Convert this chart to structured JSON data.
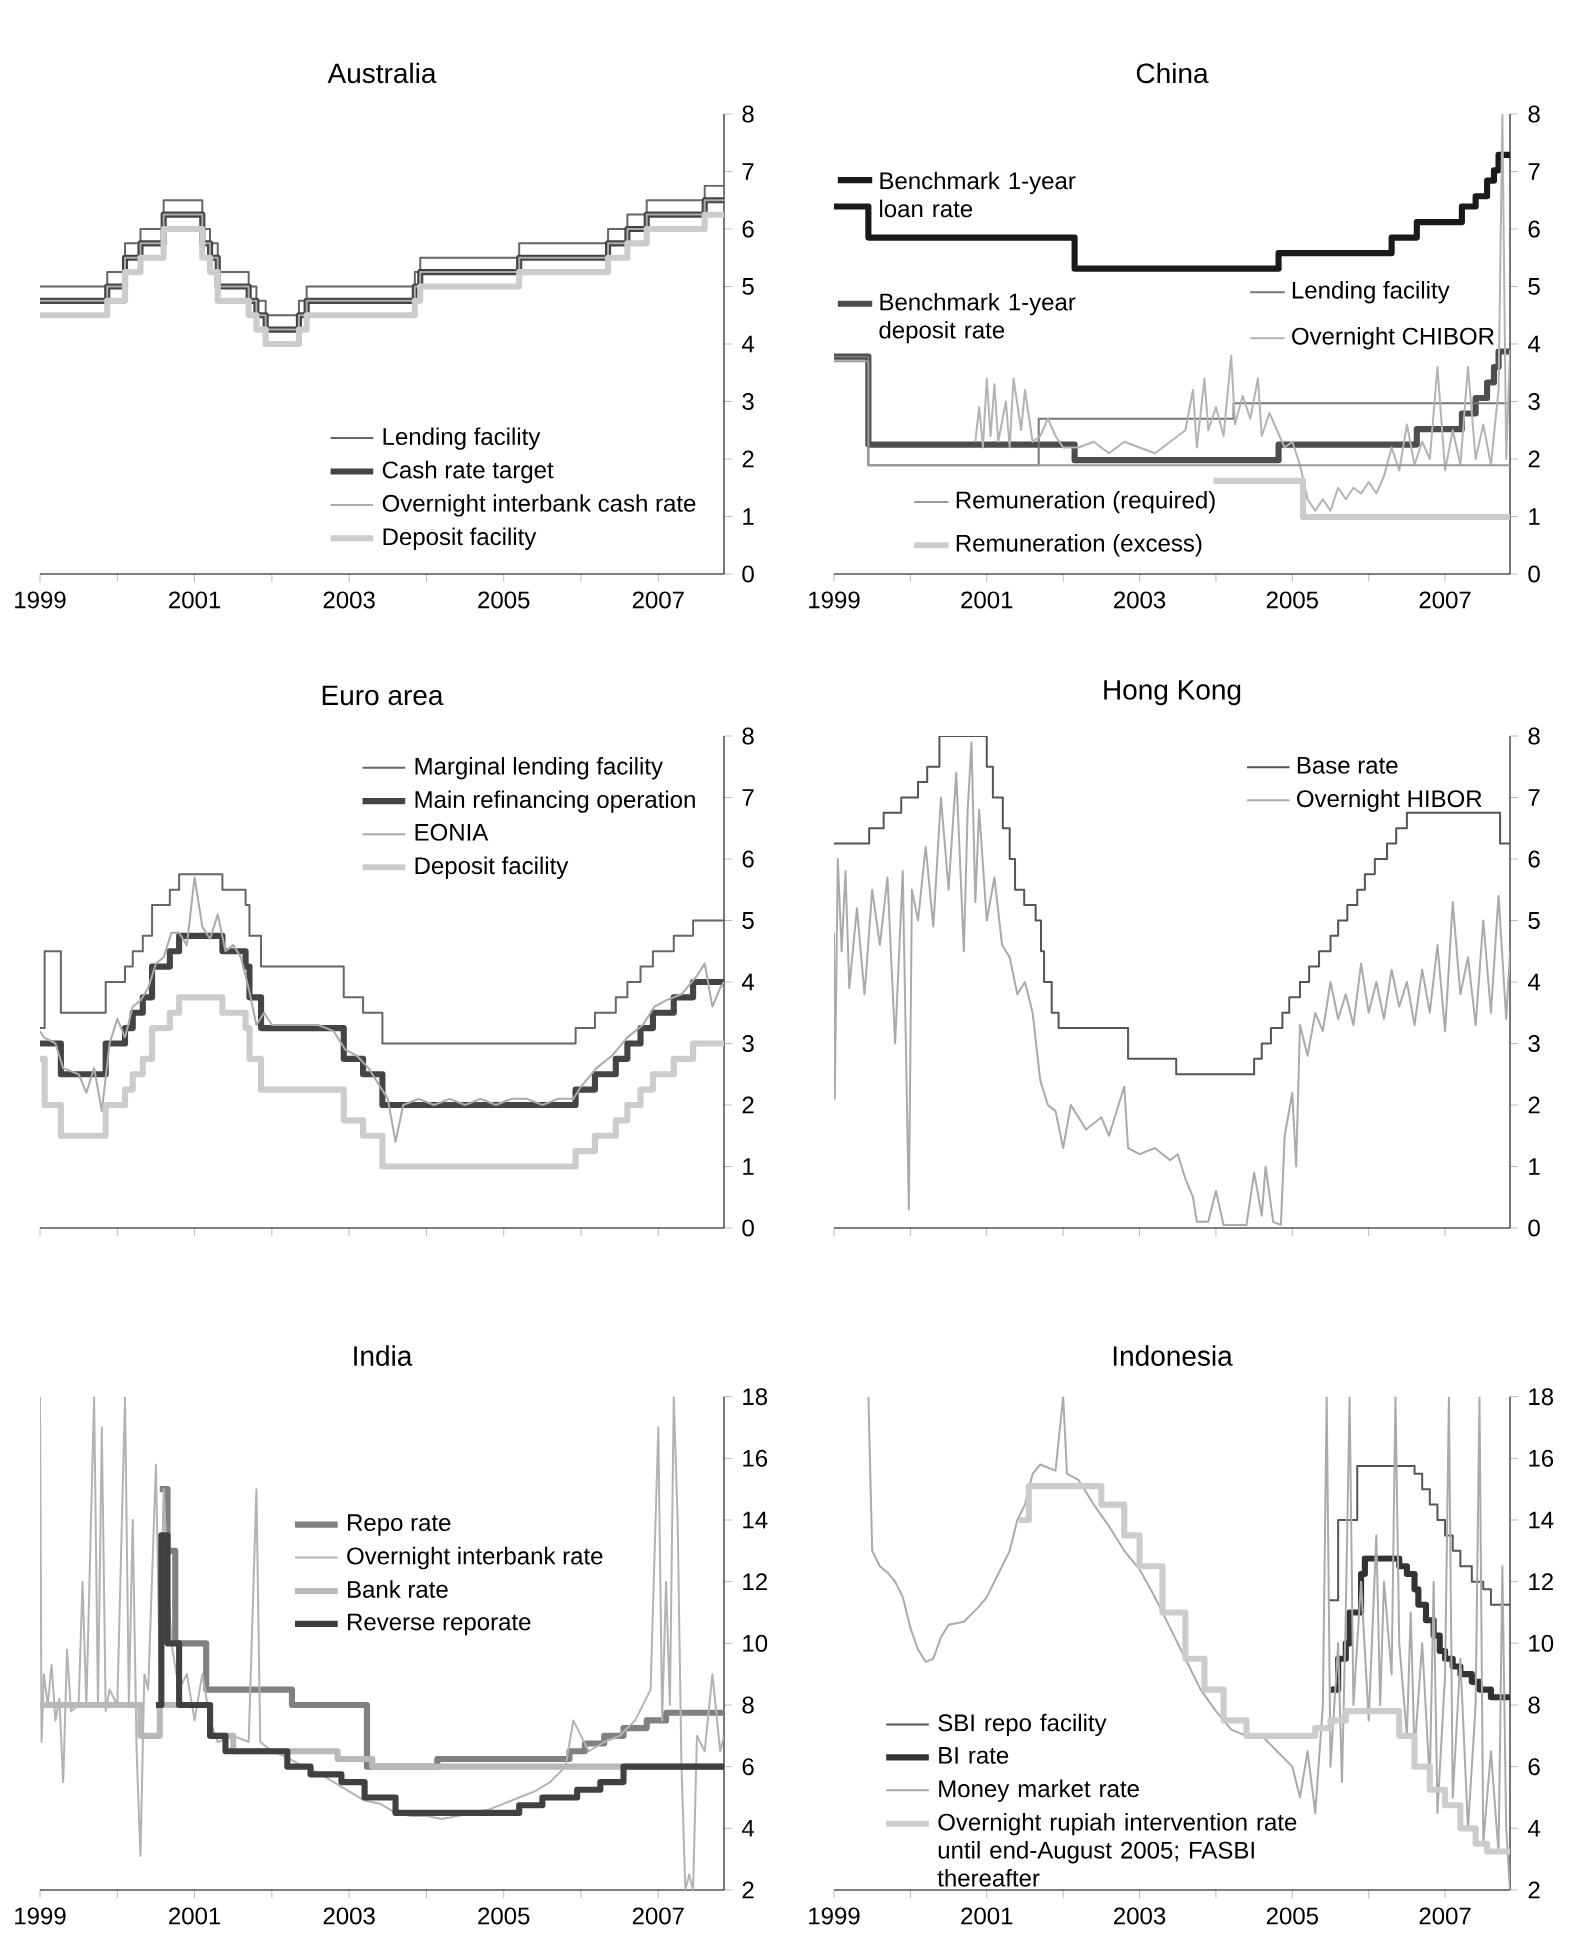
{
  "chart_data": [
    {
      "type": "line",
      "title": "Australia",
      "xlim": [
        1999,
        2007.85
      ],
      "ylim": [
        0,
        8
      ],
      "xticks": [
        1999,
        {
          "value": 2000,
          "label": null
        },
        2001,
        {
          "value": 2002,
          "label": null
        },
        2003,
        {
          "value": 2004,
          "label": null
        },
        2005,
        {
          "value": 2006,
          "label": null
        },
        2007
      ],
      "yticks": [
        0,
        1,
        2,
        3,
        4,
        5,
        6,
        7,
        8
      ],
      "legend": "bottom right",
      "x": [
        1999.0,
        1999.87,
        2000.1,
        2000.3,
        2000.6,
        2001.1,
        2001.2,
        2001.3,
        2001.7,
        2001.8,
        2001.92,
        2002.35,
        2002.45,
        2003.85,
        2003.92,
        2005.2,
        2006.35,
        2006.6,
        2006.85,
        2007.6,
        2007.85
      ],
      "series": [
        {
          "name": "Lending facility",
          "type": "step",
          "color": "#666666",
          "values": [
            5.0,
            5.25,
            5.75,
            6.0,
            6.5,
            6.0,
            5.75,
            5.25,
            5.0,
            4.75,
            4.5,
            4.75,
            5.0,
            5.25,
            5.5,
            5.75,
            6.0,
            6.25,
            6.5,
            6.75,
            6.75
          ]
        },
        {
          "name": "Cash rate target",
          "type": "step",
          "color": "#444444",
          "values": [
            4.75,
            5.0,
            5.5,
            5.75,
            6.25,
            5.75,
            5.5,
            5.0,
            4.75,
            4.5,
            4.25,
            4.5,
            4.75,
            5.0,
            5.25,
            5.5,
            5.75,
            6.0,
            6.25,
            6.5,
            6.5
          ]
        },
        {
          "name": "Overnight interbank cash rate",
          "type": "step",
          "color": "#aaaaaa",
          "values": [
            4.75,
            5.0,
            5.5,
            5.75,
            6.25,
            5.75,
            5.5,
            5.0,
            4.75,
            4.5,
            4.25,
            4.5,
            4.75,
            5.0,
            5.25,
            5.5,
            5.75,
            6.0,
            6.25,
            6.5,
            6.5
          ]
        },
        {
          "name": "Deposit facility",
          "type": "step",
          "color": "#cccccc",
          "values": [
            4.5,
            4.75,
            5.25,
            5.5,
            6.0,
            5.5,
            5.25,
            4.75,
            4.5,
            4.25,
            4.0,
            4.25,
            4.5,
            4.75,
            5.0,
            5.25,
            5.5,
            5.75,
            6.0,
            6.25,
            6.25
          ]
        }
      ]
    },
    {
      "type": "line",
      "title": "China",
      "xlim": [
        1999,
        2007.85
      ],
      "ylim": [
        0,
        8
      ],
      "xticks": [
        1999,
        {
          "value": 2000,
          "label": null
        },
        2001,
        {
          "value": 2002,
          "label": null
        },
        2003,
        {
          "value": 2004,
          "label": null
        },
        2005,
        {
          "value": 2006,
          "label": null
        },
        2007
      ],
      "yticks": [
        0,
        1,
        2,
        3,
        4,
        5,
        6,
        7,
        8
      ],
      "legend": "left",
      "series": [
        {
          "name": "Benchmark 1-year loan rate",
          "type": "step",
          "color": "#1a1a1a",
          "x": [
            1999.0,
            1999.45,
            2002.15,
            2004.82,
            2006.3,
            2006.63,
            2007.22,
            2007.4,
            2007.55,
            2007.64,
            2007.7,
            2007.85
          ],
          "values": [
            6.39,
            5.85,
            5.31,
            5.58,
            5.85,
            6.12,
            6.39,
            6.57,
            6.84,
            7.02,
            7.29,
            7.29
          ]
        },
        {
          "name": "Benchmark 1-year deposit rate",
          "type": "step",
          "color": "#4d4d4d",
          "x": [
            1999.0,
            1999.45,
            2002.15,
            2004.82,
            2006.63,
            2007.22,
            2007.4,
            2007.55,
            2007.64,
            2007.7,
            2007.85
          ],
          "values": [
            3.78,
            2.25,
            1.98,
            2.25,
            2.52,
            2.79,
            3.06,
            3.33,
            3.6,
            3.87,
            3.87
          ]
        },
        {
          "name": "Lending facility",
          "type": "step",
          "color": "#777777",
          "x": [
            1999.0,
            1999.45,
            2001.68,
            2004.23,
            2007.85
          ],
          "values": [
            3.78,
            1.89,
            2.7,
            2.97,
            2.97
          ]
        },
        {
          "name": "Overnight CHIBOR",
          "color": "#b3b3b3",
          "x": [
            2000.85,
            2000.9,
            2000.95,
            2001.0,
            2001.05,
            2001.1,
            2001.15,
            2001.25,
            2001.3,
            2001.35,
            2001.45,
            2001.5,
            2001.6,
            2001.7,
            2001.8,
            2001.9,
            2002.0,
            2002.2,
            2002.4,
            2002.6,
            2002.8,
            2003.0,
            2003.2,
            2003.4,
            2003.6,
            2003.7,
            2003.75,
            2003.85,
            2003.9,
            2004.0,
            2004.1,
            2004.2,
            2004.25,
            2004.35,
            2004.45,
            2004.55,
            2004.6,
            2004.7,
            2004.8,
            2004.9,
            2005.0,
            2005.1,
            2005.2,
            2005.3,
            2005.4,
            2005.5,
            2005.6,
            2005.7,
            2005.8,
            2005.9,
            2006.0,
            2006.1,
            2006.2,
            2006.3,
            2006.4,
            2006.5,
            2006.6,
            2006.7,
            2006.8,
            2006.9,
            2007.0,
            2007.1,
            2007.2,
            2007.3,
            2007.4,
            2007.5,
            2007.6,
            2007.7,
            2007.75,
            2007.8,
            2007.85
          ],
          "values": [
            2.3,
            2.9,
            2.2,
            3.4,
            2.4,
            3.3,
            2.3,
            3.0,
            2.2,
            3.4,
            2.5,
            3.2,
            2.3,
            2.4,
            2.7,
            2.4,
            2.2,
            2.2,
            2.3,
            2.1,
            2.3,
            2.2,
            2.1,
            2.3,
            2.5,
            3.2,
            2.2,
            3.4,
            2.5,
            2.9,
            2.4,
            3.8,
            2.6,
            3.1,
            2.7,
            3.4,
            2.4,
            2.8,
            2.5,
            2.2,
            2.3,
            1.9,
            1.3,
            1.1,
            1.3,
            1.1,
            1.5,
            1.3,
            1.5,
            1.4,
            1.6,
            1.4,
            1.7,
            2.2,
            1.8,
            2.6,
            1.9,
            2.3,
            2.0,
            3.6,
            1.8,
            2.5,
            1.9,
            3.6,
            2.0,
            2.6,
            1.9,
            3.2,
            8.0,
            2.0,
            3.9
          ]
        },
        {
          "name": "Remuneration (required)",
          "type": "step",
          "color": "#999999",
          "x": [
            1999.0,
            1999.45,
            2007.85
          ],
          "values": [
            3.7,
            1.89,
            1.89
          ]
        },
        {
          "name": "Remuneration (excess)",
          "type": "step",
          "color": "#cccccc",
          "x": [
            2003.97,
            2005.14,
            2007.85
          ],
          "values": [
            1.62,
            0.99,
            0.99
          ]
        }
      ]
    },
    {
      "type": "line",
      "title": "Euro area",
      "xlim": [
        1999,
        2007.85
      ],
      "ylim": [
        0,
        8
      ],
      "tick_labels": "y",
      "xticks": [
        1999,
        {
          "value": 2000,
          "label": null
        },
        2001,
        {
          "value": 2002,
          "label": null
        },
        2003,
        {
          "value": 2004,
          "label": null
        },
        2005,
        {
          "value": 2006,
          "label": null
        },
        2007
      ],
      "yticks": [
        0,
        1,
        2,
        3,
        4,
        5,
        6,
        7,
        8
      ],
      "legend": "top right",
      "series": [
        {
          "name": "Marginal lending facility",
          "type": "step",
          "color": "#666666",
          "x": [
            1999.0,
            1999.06,
            1999.27,
            1999.85,
            2000.1,
            2000.2,
            2000.33,
            2000.45,
            2000.68,
            2000.8,
            2001.36,
            2001.66,
            2001.71,
            2001.86,
            2002.93,
            2003.18,
            2003.43,
            2005.93,
            2006.18,
            2006.45,
            2006.6,
            2006.77,
            2006.93,
            2007.2,
            2007.45,
            2007.85
          ],
          "values": [
            3.25,
            4.5,
            3.5,
            4.0,
            4.25,
            4.5,
            4.75,
            5.25,
            5.5,
            5.75,
            5.5,
            5.25,
            4.75,
            4.25,
            3.75,
            3.5,
            3.0,
            3.25,
            3.5,
            3.75,
            4.0,
            4.25,
            4.5,
            4.75,
            5.0,
            5.0
          ]
        },
        {
          "name": "Main refinancing operation",
          "type": "step",
          "color": "#444444",
          "x": [
            1999.0,
            1999.27,
            1999.85,
            2000.1,
            2000.2,
            2000.33,
            2000.45,
            2000.68,
            2000.8,
            2001.36,
            2001.66,
            2001.71,
            2001.86,
            2002.93,
            2003.18,
            2003.43,
            2005.93,
            2006.18,
            2006.45,
            2006.6,
            2006.77,
            2006.93,
            2007.2,
            2007.45,
            2007.85
          ],
          "values": [
            3.0,
            2.5,
            3.0,
            3.25,
            3.5,
            3.75,
            4.25,
            4.5,
            4.75,
            4.5,
            4.25,
            3.75,
            3.25,
            2.75,
            2.5,
            2.0,
            2.25,
            2.5,
            2.75,
            3.0,
            3.25,
            3.5,
            3.75,
            4.0,
            4.0
          ]
        },
        {
          "name": "EONIA",
          "color": "#aaaaaa",
          "x": [
            1999.0,
            1999.05,
            1999.2,
            1999.3,
            1999.5,
            1999.6,
            1999.7,
            1999.8,
            1999.9,
            2000.0,
            2000.1,
            2000.2,
            2000.3,
            2000.4,
            2000.5,
            2000.6,
            2000.7,
            2000.8,
            2000.9,
            2001.0,
            2001.1,
            2001.2,
            2001.3,
            2001.4,
            2001.5,
            2001.6,
            2001.7,
            2001.8,
            2001.9,
            2002.0,
            2002.2,
            2002.4,
            2002.6,
            2002.8,
            2002.95,
            2003.1,
            2003.25,
            2003.4,
            2003.5,
            2003.6,
            2003.7,
            2003.9,
            2004.1,
            2004.3,
            2004.5,
            2004.7,
            2004.9,
            2005.1,
            2005.3,
            2005.5,
            2005.7,
            2005.9,
            2006.0,
            2006.2,
            2006.4,
            2006.6,
            2006.8,
            2006.95,
            2007.1,
            2007.3,
            2007.5,
            2007.6,
            2007.7,
            2007.8,
            2007.85
          ],
          "values": [
            3.2,
            3.1,
            3.0,
            2.6,
            2.5,
            2.2,
            2.6,
            1.9,
            3.0,
            3.4,
            3.1,
            3.6,
            3.7,
            3.9,
            4.3,
            4.4,
            4.8,
            4.8,
            4.6,
            5.7,
            4.9,
            4.7,
            5.1,
            4.5,
            4.6,
            4.4,
            3.9,
            3.3,
            3.5,
            3.3,
            3.3,
            3.3,
            3.3,
            3.2,
            2.9,
            2.8,
            2.6,
            2.3,
            2.1,
            1.4,
            2.0,
            2.1,
            2.0,
            2.1,
            2.0,
            2.1,
            2.0,
            2.1,
            2.1,
            2.0,
            2.1,
            2.1,
            2.3,
            2.6,
            2.8,
            3.1,
            3.3,
            3.6,
            3.7,
            3.8,
            4.1,
            4.3,
            3.6,
            3.9,
            4.0
          ]
        },
        {
          "name": "Deposit facility",
          "type": "step",
          "color": "#cccccc",
          "x": [
            1999.0,
            1999.06,
            1999.27,
            1999.85,
            2000.1,
            2000.2,
            2000.33,
            2000.45,
            2000.68,
            2000.8,
            2001.36,
            2001.66,
            2001.71,
            2001.86,
            2002.93,
            2003.18,
            2003.43,
            2005.93,
            2006.18,
            2006.45,
            2006.6,
            2006.77,
            2006.93,
            2007.2,
            2007.45,
            2007.85
          ],
          "values": [
            2.75,
            2.0,
            1.5,
            2.0,
            2.25,
            2.5,
            2.75,
            3.25,
            3.5,
            3.75,
            3.5,
            3.25,
            2.75,
            2.25,
            1.75,
            1.5,
            1.0,
            1.25,
            1.5,
            1.75,
            2.0,
            2.25,
            2.5,
            2.75,
            3.0,
            3.0
          ]
        }
      ]
    },
    {
      "type": "line",
      "title": "Hong Kong",
      "xlim": [
        1999,
        2007.85
      ],
      "ylim": [
        0,
        8
      ],
      "tick_labels": "y",
      "xticks": [
        1999,
        {
          "value": 2000,
          "label": null
        },
        2001,
        {
          "value": 2002,
          "label": null
        },
        2003,
        {
          "value": 2004,
          "label": null
        },
        2005,
        {
          "value": 2006,
          "label": null
        },
        2007
      ],
      "yticks": [
        0,
        1,
        2,
        3,
        4,
        5,
        6,
        7,
        8
      ],
      "legend": "top right",
      "series": [
        {
          "name": "Base rate",
          "type": "step",
          "color": "#555555",
          "x": [
            1999.0,
            1999.46,
            1999.65,
            1999.88,
            2000.1,
            2000.22,
            2000.38,
            2001.0,
            2001.08,
            2001.21,
            2001.3,
            2001.37,
            2001.49,
            2001.64,
            2001.71,
            2001.75,
            2001.85,
            2001.94,
            2002.85,
            2003.48,
            2004.5,
            2004.6,
            2004.72,
            2004.87,
            2004.96,
            2005.1,
            2005.22,
            2005.35,
            2005.5,
            2005.6,
            2005.72,
            2005.85,
            2005.95,
            2006.08,
            2006.24,
            2006.36,
            2006.5,
            2007.72,
            2007.85
          ],
          "values": [
            6.25,
            6.5,
            6.75,
            7.0,
            7.25,
            7.5,
            8.0,
            7.5,
            7.0,
            6.5,
            6.0,
            5.5,
            5.25,
            5.0,
            4.5,
            4.0,
            3.5,
            3.25,
            2.75,
            2.5,
            2.75,
            3.0,
            3.25,
            3.5,
            3.75,
            4.0,
            4.25,
            4.5,
            4.75,
            5.0,
            5.25,
            5.5,
            5.75,
            6.0,
            6.25,
            6.5,
            6.75,
            6.25,
            6.25
          ]
        },
        {
          "name": "Overnight HIBOR",
          "color": "#aaaaaa",
          "x": [
            1999.0,
            1999.01,
            1999.05,
            1999.1,
            1999.15,
            1999.2,
            1999.3,
            1999.4,
            1999.5,
            1999.6,
            1999.7,
            1999.8,
            1999.9,
            1999.98,
            2000.02,
            2000.1,
            2000.2,
            2000.3,
            2000.4,
            2000.5,
            2000.6,
            2000.7,
            2000.75,
            2000.8,
            2000.85,
            2000.9,
            2001.0,
            2001.1,
            2001.2,
            2001.3,
            2001.4,
            2001.5,
            2001.6,
            2001.7,
            2001.8,
            2001.9,
            2002.0,
            2002.1,
            2002.3,
            2002.5,
            2002.6,
            2002.8,
            2002.85,
            2003.0,
            2003.2,
            2003.4,
            2003.5,
            2003.6,
            2003.7,
            2003.75,
            2003.9,
            2004.0,
            2004.1,
            2004.4,
            2004.5,
            2004.6,
            2004.65,
            2004.75,
            2004.85,
            2004.9,
            2005.0,
            2005.05,
            2005.1,
            2005.2,
            2005.3,
            2005.4,
            2005.5,
            2005.6,
            2005.7,
            2005.8,
            2005.9,
            2006.0,
            2006.1,
            2006.2,
            2006.3,
            2006.4,
            2006.5,
            2006.6,
            2006.7,
            2006.8,
            2006.9,
            2007.0,
            2007.1,
            2007.2,
            2007.3,
            2007.4,
            2007.5,
            2007.6,
            2007.7,
            2007.8,
            2007.85
          ],
          "values": [
            4.8,
            2.1,
            6.0,
            4.5,
            5.8,
            3.9,
            5.2,
            3.8,
            5.5,
            4.6,
            5.7,
            3.0,
            5.8,
            0.3,
            5.5,
            5.0,
            6.2,
            4.9,
            7.0,
            5.5,
            7.4,
            4.5,
            6.8,
            7.9,
            5.3,
            6.8,
            5.0,
            5.7,
            4.6,
            4.4,
            3.8,
            4.0,
            3.5,
            2.4,
            2.0,
            1.9,
            1.3,
            2.0,
            1.6,
            1.8,
            1.5,
            2.3,
            1.3,
            1.2,
            1.3,
            1.1,
            1.2,
            0.8,
            0.5,
            0.1,
            0.1,
            0.6,
            0.05,
            0.05,
            0.9,
            0.2,
            1.0,
            0.1,
            0.05,
            1.5,
            2.2,
            1.0,
            3.3,
            2.8,
            3.5,
            3.2,
            4.0,
            3.4,
            3.8,
            3.3,
            4.3,
            3.5,
            4.0,
            3.4,
            4.2,
            3.6,
            4.0,
            3.3,
            4.2,
            3.5,
            4.6,
            3.2,
            5.3,
            3.8,
            4.4,
            3.3,
            5.0,
            3.5,
            5.4,
            3.4,
            4.5
          ]
        }
      ]
    },
    {
      "type": "line",
      "title": "India",
      "xlim": [
        1999,
        2007.85
      ],
      "ylim": [
        2,
        18
      ],
      "xticks": [
        1999,
        {
          "value": 2000,
          "label": null
        },
        2001,
        {
          "value": 2002,
          "label": null
        },
        2003,
        {
          "value": 2004,
          "label": null
        },
        2005,
        {
          "value": 2006,
          "label": null
        },
        2007
      ],
      "yticks": [
        2,
        4,
        6,
        8,
        10,
        12,
        14,
        16,
        18
      ],
      "legend": "center",
      "series": [
        {
          "name": "Repo rate",
          "type": "step",
          "color": "#808080",
          "x": [
            2000.55,
            2000.65,
            2000.75,
            2001.15,
            2002.26,
            2003.23,
            2004.14,
            2005.85,
            2006.05,
            2006.3,
            2006.55,
            2006.85,
            2007.1,
            2007.85
          ],
          "values": [
            15,
            13,
            10,
            8.5,
            8.0,
            6.0,
            6.25,
            6.5,
            6.75,
            7.0,
            7.25,
            7.5,
            7.75,
            7.75
          ]
        },
        {
          "name": "Overnight interbank rate",
          "color": "#b3b3b3",
          "x": [
            1999.0,
            1999.02,
            1999.05,
            1999.1,
            1999.15,
            1999.2,
            1999.25,
            1999.3,
            1999.35,
            1999.4,
            1999.5,
            1999.55,
            1999.6,
            1999.7,
            1999.75,
            1999.8,
            1999.85,
            1999.9,
            2000.0,
            2000.1,
            2000.15,
            2000.2,
            2000.25,
            2000.3,
            2000.35,
            2000.4,
            2000.5,
            2000.55,
            2000.6,
            2000.7,
            2000.8,
            2000.9,
            2001.0,
            2001.1,
            2001.2,
            2001.3,
            2001.5,
            2001.7,
            2001.8,
            2001.85,
            2002.0,
            2002.2,
            2002.4,
            2002.6,
            2002.8,
            2003.0,
            2003.2,
            2003.4,
            2003.6,
            2003.8,
            2004.0,
            2004.2,
            2004.4,
            2004.6,
            2004.8,
            2005.0,
            2005.2,
            2005.4,
            2005.6,
            2005.8,
            2005.9,
            2006.0,
            2006.1,
            2006.3,
            2006.5,
            2006.7,
            2006.9,
            2007.0,
            2007.05,
            2007.1,
            2007.15,
            2007.2,
            2007.25,
            2007.3,
            2007.35,
            2007.4,
            2007.45,
            2007.5,
            2007.6,
            2007.7,
            2007.8,
            2007.85
          ],
          "values": [
            18,
            6.8,
            9.0,
            8.0,
            9.3,
            7.5,
            8.2,
            5.5,
            9.8,
            7.8,
            8.0,
            12.0,
            8.0,
            18,
            8.0,
            17.0,
            7.8,
            8.5,
            8.0,
            18,
            8.0,
            14,
            6.5,
            3.1,
            9.0,
            8.5,
            15.8,
            9.0,
            15.0,
            10.0,
            8.5,
            9.0,
            7.5,
            9.0,
            7.5,
            6.8,
            7.0,
            6.8,
            15.0,
            6.8,
            6.5,
            6.3,
            6.0,
            5.8,
            5.5,
            5.2,
            4.9,
            4.8,
            4.5,
            4.4,
            4.4,
            4.3,
            4.4,
            4.5,
            4.6,
            4.8,
            5.0,
            5.2,
            5.5,
            6.0,
            7.5,
            7.0,
            6.5,
            6.8,
            7.0,
            7.5,
            8.5,
            17.0,
            7.5,
            12.0,
            8.0,
            18.0,
            14.0,
            6.0,
            2.0,
            2.5,
            2.0,
            7.0,
            6.5,
            9.0,
            6.5,
            7.0
          ]
        },
        {
          "name": "Bank rate",
          "type": "step",
          "color": "#b8b8b8",
          "x": [
            1999.0,
            2000.3,
            2000.55,
            2001.2,
            2001.5,
            2002.85,
            2003.3,
            2007.85
          ],
          "values": [
            8,
            7,
            8,
            7,
            6.5,
            6.25,
            6.0,
            6.0
          ]
        },
        {
          "name": "Reverse reporate",
          "type": "step",
          "color": "#404040",
          "x": [
            2000.5,
            2000.57,
            2000.65,
            2000.8,
            2001.2,
            2001.4,
            2002.2,
            2002.5,
            2002.9,
            2003.2,
            2003.6,
            2005.2,
            2005.5,
            2005.95,
            2006.25,
            2006.55,
            2007.85
          ],
          "values": [
            8,
            13.5,
            10,
            8,
            7,
            6.5,
            6.0,
            5.75,
            5.5,
            5.0,
            4.5,
            4.75,
            5.0,
            5.25,
            5.5,
            6.0,
            6.0
          ]
        }
      ]
    },
    {
      "type": "line",
      "title": "Indonesia",
      "xlim": [
        1999,
        2007.85
      ],
      "ylim": [
        2,
        18
      ],
      "xticks": [
        1999,
        {
          "value": 2000,
          "label": null
        },
        2001,
        {
          "value": 2002,
          "label": null
        },
        2003,
        {
          "value": 2004,
          "label": null
        },
        2005,
        {
          "value": 2006,
          "label": null
        },
        2007
      ],
      "yticks": [
        2,
        4,
        6,
        8,
        10,
        12,
        14,
        16,
        18
      ],
      "legend": "bottom left",
      "series": [
        {
          "name": "SBI repo facility",
          "type": "step",
          "color": "#555555",
          "x": [
            2005.47,
            2005.6,
            2005.85,
            2006.6,
            2006.7,
            2006.8,
            2006.9,
            2007.0,
            2007.1,
            2007.2,
            2007.35,
            2007.5,
            2007.6,
            2007.85
          ],
          "values": [
            11.4,
            14.0,
            15.75,
            15.5,
            15.0,
            14.5,
            14.0,
            13.5,
            13.0,
            12.5,
            12.0,
            11.75,
            11.25,
            11.25
          ]
        },
        {
          "name": "BI rate",
          "type": "step",
          "color": "#333333",
          "x": [
            2005.5,
            2005.6,
            2005.7,
            2005.75,
            2005.9,
            2005.95,
            2006.4,
            2006.5,
            2006.6,
            2006.65,
            2006.75,
            2006.85,
            2006.93,
            2007.0,
            2007.1,
            2007.2,
            2007.35,
            2007.45,
            2007.6,
            2007.7,
            2007.85
          ],
          "values": [
            8.5,
            9.5,
            10.0,
            11.0,
            12.25,
            12.75,
            12.5,
            12.25,
            11.75,
            11.25,
            10.75,
            10.25,
            9.75,
            9.5,
            9.25,
            9.0,
            8.75,
            8.5,
            8.25,
            8.25,
            8.25
          ]
        },
        {
          "name": "Money market rate",
          "color": "#aaaaaa",
          "x": [
            1999.45,
            1999.5,
            1999.6,
            1999.7,
            1999.8,
            1999.9,
            2000.0,
            2000.1,
            2000.2,
            2000.3,
            2000.4,
            2000.5,
            2000.7,
            2000.9,
            2001.0,
            2001.1,
            2001.2,
            2001.3,
            2001.4,
            2001.5,
            2001.6,
            2001.7,
            2001.9,
            2002.0,
            2002.05,
            2002.2,
            2002.4,
            2002.6,
            2002.8,
            2003.0,
            2003.2,
            2003.4,
            2003.6,
            2003.8,
            2004.0,
            2004.2,
            2004.4,
            2004.6,
            2004.8,
            2005.0,
            2005.1,
            2005.2,
            2005.3,
            2005.4,
            2005.45,
            2005.5,
            2005.6,
            2005.65,
            2005.7,
            2005.75,
            2005.8,
            2005.9,
            2006.0,
            2006.1,
            2006.15,
            2006.2,
            2006.3,
            2006.35,
            2006.4,
            2006.5,
            2006.55,
            2006.6,
            2006.7,
            2006.8,
            2006.85,
            2006.9,
            2007.0,
            2007.05,
            2007.1,
            2007.2,
            2007.3,
            2007.4,
            2007.45,
            2007.5,
            2007.6,
            2007.7,
            2007.75,
            2007.8,
            2007.85
          ],
          "values": [
            18,
            13.0,
            12.5,
            12.3,
            12.0,
            11.5,
            10.5,
            9.8,
            9.4,
            9.5,
            10.2,
            10.6,
            10.7,
            11.2,
            11.5,
            12.0,
            12.5,
            13.0,
            14.0,
            14.5,
            15.5,
            15.8,
            15.6,
            18.0,
            15.5,
            15.3,
            14.5,
            13.8,
            13.0,
            12.4,
            11.5,
            10.5,
            9.5,
            8.5,
            7.8,
            7.2,
            7.0,
            7.0,
            6.5,
            6.0,
            5.0,
            6.5,
            4.5,
            8.0,
            18.0,
            6.0,
            10.0,
            5.5,
            11.0,
            18.0,
            8.0,
            12.0,
            7.5,
            13.5,
            8.0,
            12.0,
            9.0,
            18.0,
            10.0,
            7.0,
            11.0,
            6.5,
            10.0,
            5.5,
            12.0,
            4.5,
            9.0,
            18.0,
            5.0,
            9.5,
            4.0,
            8.0,
            18.0,
            3.5,
            6.5,
            3.2,
            12.5,
            4.0,
            2.0
          ]
        },
        {
          "name": "Overnight rupiah intervention rate until end-August 2005; FASBI thereafter",
          "type": "step",
          "color": "#cccccc",
          "x": [
            2001.42,
            2001.55,
            2002.2,
            2002.5,
            2002.8,
            2003.0,
            2003.3,
            2003.6,
            2003.85,
            2004.1,
            2004.4,
            2005.3,
            2005.5,
            2005.7,
            2006.4,
            2006.6,
            2006.8,
            2007.0,
            2007.2,
            2007.4,
            2007.55,
            2007.7,
            2007.85
          ],
          "values": [
            14.0,
            15.1,
            15.1,
            14.5,
            13.5,
            12.5,
            11.0,
            9.5,
            8.5,
            7.5,
            7.0,
            7.25,
            7.5,
            7.8,
            7.0,
            6.0,
            5.25,
            4.75,
            4.0,
            3.5,
            3.25,
            3.25,
            3.25
          ]
        }
      ]
    }
  ]
}
